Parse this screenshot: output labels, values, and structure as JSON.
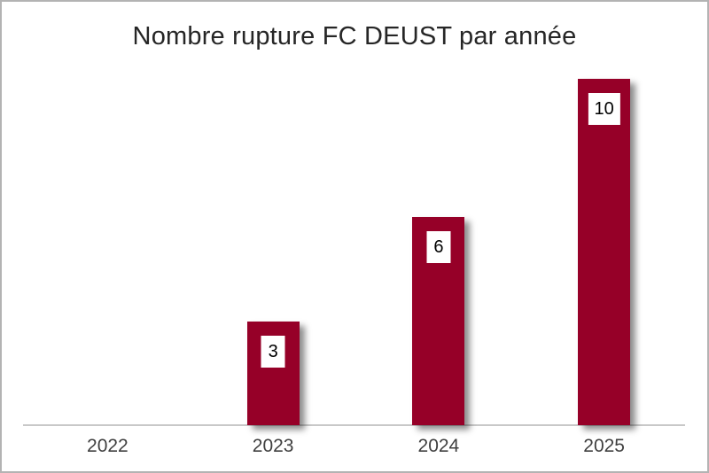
{
  "chart_data": {
    "type": "bar",
    "title": "Nombre rupture FC DEUST par année",
    "categories": [
      "2022",
      "2023",
      "2024",
      "2025"
    ],
    "values": [
      0,
      3,
      6,
      10
    ],
    "data_labels_shown": [
      "3",
      "6",
      "10"
    ],
    "xlabel": "",
    "ylabel": "",
    "ylim": [
      0,
      10
    ],
    "grid": false,
    "legend": false,
    "bar_color": "#960028",
    "axis_line_color": "#c8c8c8",
    "title_color": "#262626",
    "tick_label_color": "#3f3f3f",
    "data_label_bg": "#ffffff",
    "data_label_text_color": "#000000",
    "background": "#ffffff",
    "frame_border_color": "#b3b3b3"
  }
}
